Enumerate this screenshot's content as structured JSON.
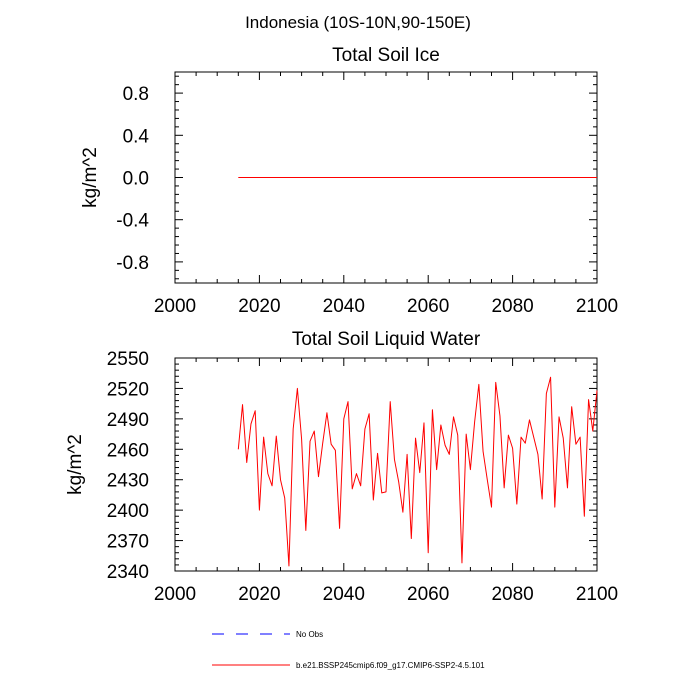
{
  "figure": {
    "suptitle": "Indonesia (10S-10N,90-150E)",
    "legend": [
      {
        "label": "No Obs",
        "color": "#0000ff",
        "dash": "dashed"
      },
      {
        "label": "b.e21.BSSP245cmip6.f09_g17.CMIP6-SSP2-4.5.101",
        "color": "#ff0000",
        "dash": "solid"
      }
    ]
  },
  "chart_data": [
    {
      "type": "line",
      "title": "Total Soil Ice",
      "ylabel": "kg/m^2",
      "xlabel": "",
      "xlim": [
        2000,
        2100
      ],
      "ylim": [
        -1.0,
        1.0
      ],
      "xticks": [
        2000,
        2020,
        2040,
        2060,
        2080,
        2100
      ],
      "xtick_labels": [
        "2000",
        "2020",
        "2040",
        "2060",
        "2080",
        "2100"
      ],
      "yticks": [
        0.8,
        0.4,
        0.0,
        -0.4,
        -0.8
      ],
      "ytick_labels": [
        "0.8",
        "0.4",
        "0.0",
        "-0.4",
        "-0.8"
      ],
      "grid": false,
      "series": [
        {
          "color": "#ff0000",
          "x": [
            2015,
            2100
          ],
          "y": [
            0.0,
            0.0
          ]
        }
      ]
    },
    {
      "type": "line",
      "title": "Total Soil Liquid Water",
      "ylabel": "kg/m^2",
      "xlabel": "",
      "xlim": [
        2000,
        2100
      ],
      "ylim": [
        2340,
        2550
      ],
      "xticks": [
        2000,
        2020,
        2040,
        2060,
        2080,
        2100
      ],
      "xtick_labels": [
        "2000",
        "2020",
        "2040",
        "2060",
        "2080",
        "2100"
      ],
      "yticks": [
        2550,
        2520,
        2490,
        2460,
        2430,
        2400,
        2370,
        2340
      ],
      "ytick_labels": [
        "2550",
        "2520",
        "2490",
        "2460",
        "2430",
        "2400",
        "2370",
        "2340"
      ],
      "grid": false,
      "series": [
        {
          "color": "#ff0000",
          "x": [
            2015,
            2016,
            2017,
            2018,
            2019,
            2020,
            2021,
            2022,
            2023,
            2024,
            2025,
            2026,
            2027,
            2028,
            2029,
            2030,
            2031,
            2032,
            2033,
            2034,
            2035,
            2036,
            2037,
            2038,
            2039,
            2040,
            2041,
            2042,
            2043,
            2044,
            2045,
            2046,
            2047,
            2048,
            2049,
            2050,
            2051,
            2052,
            2053,
            2054,
            2055,
            2056,
            2057,
            2058,
            2059,
            2060,
            2061,
            2062,
            2063,
            2064,
            2065,
            2066,
            2067,
            2068,
            2069,
            2070,
            2071,
            2072,
            2073,
            2074,
            2075,
            2076,
            2077,
            2078,
            2079,
            2080,
            2081,
            2082,
            2083,
            2084,
            2085,
            2086,
            2087,
            2088,
            2089,
            2090,
            2091,
            2092,
            2093,
            2094,
            2095,
            2096,
            2097,
            2098,
            2099,
            2100
          ],
          "y": [
            2460,
            2504,
            2447,
            2485,
            2498,
            2400,
            2472,
            2436,
            2424,
            2473,
            2430,
            2412,
            2345,
            2480,
            2520,
            2470,
            2380,
            2468,
            2478,
            2433,
            2466,
            2496,
            2465,
            2459,
            2382,
            2490,
            2507,
            2421,
            2436,
            2424,
            2480,
            2495,
            2410,
            2456,
            2417,
            2418,
            2507,
            2450,
            2428,
            2398,
            2455,
            2372,
            2471,
            2437,
            2486,
            2358,
            2499,
            2440,
            2484,
            2464,
            2455,
            2492,
            2474,
            2348,
            2475,
            2440,
            2487,
            2524,
            2458,
            2430,
            2403,
            2526,
            2493,
            2422,
            2474,
            2461,
            2406,
            2472,
            2466,
            2489,
            2472,
            2455,
            2411,
            2515,
            2531,
            2403,
            2492,
            2471,
            2422,
            2502,
            2465,
            2472,
            2394,
            2509,
            2478,
            2518
          ]
        }
      ]
    }
  ]
}
